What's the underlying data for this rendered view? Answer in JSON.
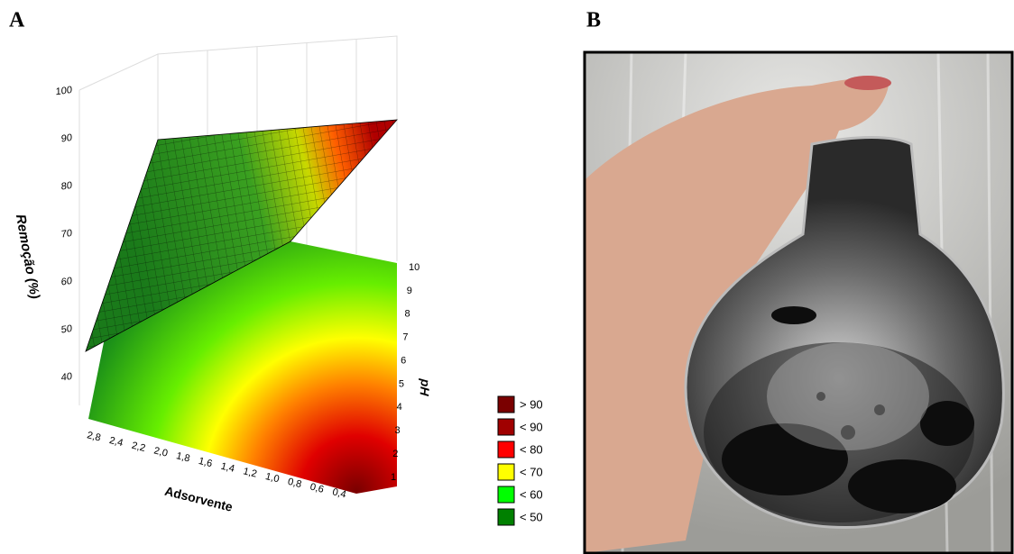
{
  "panels": [
    {
      "label": "A",
      "z_axis_title": "Remoção (%)",
      "z_ticks": [
        "100",
        "90",
        "80",
        "70",
        "60",
        "50",
        "40"
      ],
      "x_axis_title": "Adsorvente",
      "x_ticks": [
        "2,8",
        "2,4",
        "2,2",
        "2,0",
        "1,8",
        "1,6",
        "1,4",
        "1,2",
        "1,0",
        "0,8",
        "0,6",
        "0,4"
      ],
      "y_axis_title": "pH",
      "y_ticks": [
        "10",
        "9",
        "8",
        "7",
        "6",
        "5",
        "4",
        "3",
        "2",
        "1"
      ],
      "legend": [
        "> 90",
        "< 90",
        "< 80",
        "< 70",
        "< 60",
        "< 50"
      ]
    },
    {
      "label": "B"
    }
  ]
}
